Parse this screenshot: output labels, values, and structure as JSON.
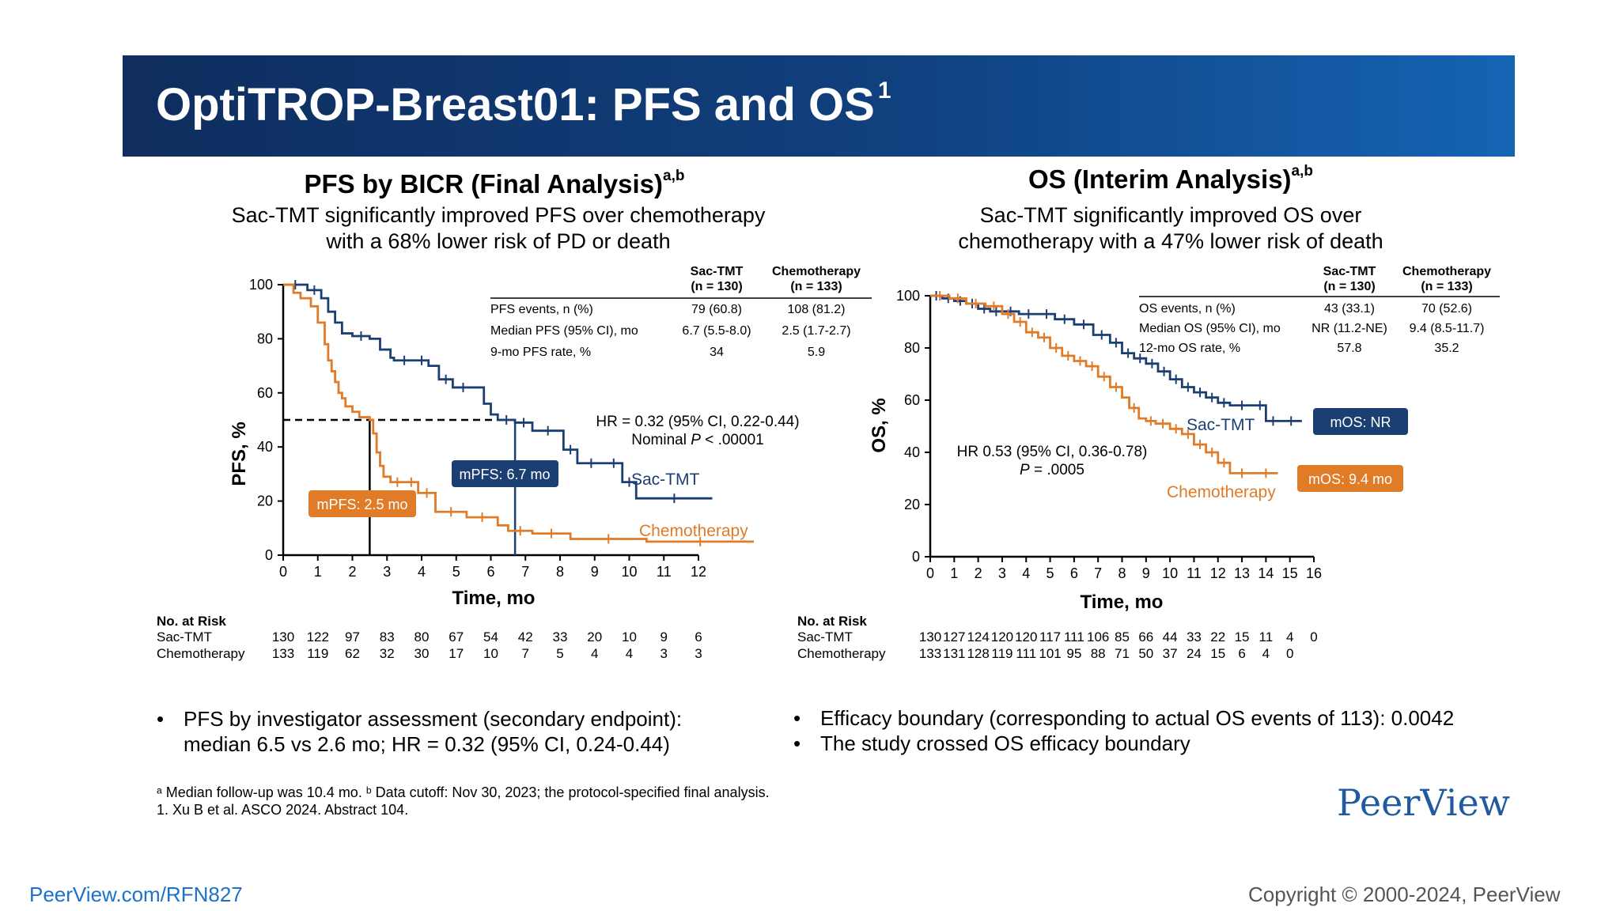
{
  "slide": {
    "title": "OptiTROP-Breast01: PFS and OS",
    "title_sup": "1"
  },
  "pfs": {
    "heading": "PFS by BICR (Final Analysis)",
    "heading_sup": "a,b",
    "subtitle_line1": "Sac-TMT significantly improved PFS over chemotherapy",
    "subtitle_line2": "with a 68% lower risk of PD or death",
    "table": {
      "headers": [
        [
          "Sac-TMT",
          "(n = 130)"
        ],
        [
          "Chemotherapy",
          "(n = 133)"
        ]
      ],
      "rows": [
        [
          "PFS events, n (%)",
          "79 (60.8)",
          "108 (81.2)"
        ],
        [
          "Median PFS (95% CI), mo",
          "6.7 (5.5-8.0)",
          "2.5 (1.7-2.7)"
        ],
        [
          "9-mo PFS rate, %",
          "34",
          "5.9"
        ]
      ]
    },
    "hr_line1": "HR = 0.32 (95% CI, 0.22-0.44)",
    "hr_line2_prefix": "Nominal ",
    "hr_line2_p": "P",
    "hr_line2_suffix": " < .00001",
    "median_labels": {
      "sac": "mPFS: 6.7 mo",
      "chemo": "mPFS: 2.5 mo"
    },
    "risk": {
      "header": "No. at Risk",
      "rows": [
        {
          "label": "Sac-TMT",
          "values": [
            "130",
            "122",
            "97",
            "83",
            "80",
            "67",
            "54",
            "42",
            "33",
            "20",
            "10",
            "9",
            "6"
          ]
        },
        {
          "label": "Chemotherapy",
          "values": [
            "133",
            "119",
            "62",
            "32",
            "30",
            "17",
            "10",
            "7",
            "5",
            "4",
            "4",
            "3",
            "3"
          ]
        }
      ]
    }
  },
  "os": {
    "heading": "OS (Interim Analysis)",
    "heading_sup": "a,b",
    "subtitle_line1": "Sac-TMT significantly improved OS over",
    "subtitle_line2": "chemotherapy with a 47% lower risk of death",
    "table": {
      "headers": [
        [
          "Sac-TMT",
          "(n = 130)"
        ],
        [
          "Chemotherapy",
          "(n = 133)"
        ]
      ],
      "rows": [
        [
          "OS events, n (%)",
          "43 (33.1)",
          "70 (52.6)"
        ],
        [
          "Median OS (95% CI), mo",
          "NR (11.2-NE)",
          "9.4 (8.5-11.7)"
        ],
        [
          "12-mo OS rate, %",
          "57.8",
          "35.2"
        ]
      ]
    },
    "hr_line1": "HR 0.53 (95% CI, 0.36-0.78)",
    "hr_line2_p": "P",
    "hr_line2_suffix": " = .0005",
    "median_labels": {
      "sac": "mOS: NR",
      "chemo": "mOS: 9.4 mo"
    },
    "risk": {
      "header": "No. at Risk",
      "rows": [
        {
          "label": "Sac-TMT",
          "values": [
            "130",
            "127",
            "124",
            "120",
            "120",
            "117",
            "111",
            "106",
            "85",
            "66",
            "44",
            "33",
            "22",
            "15",
            "11",
            "4",
            "0"
          ]
        },
        {
          "label": "Chemotherapy",
          "values": [
            "133",
            "131",
            "128",
            "119",
            "111",
            "101",
            "95",
            "88",
            "71",
            "50",
            "37",
            "24",
            "15",
            "6",
            "4",
            "0"
          ]
        }
      ]
    }
  },
  "chart_data": [
    {
      "type": "line",
      "title": "PFS by BICR (Final Analysis)",
      "xlabel": "Time, mo",
      "ylabel": "PFS, %",
      "xlim": [
        0,
        12
      ],
      "ylim": [
        0,
        100
      ],
      "xticks": [
        0,
        1,
        2,
        3,
        4,
        5,
        6,
        7,
        8,
        9,
        10,
        11,
        12
      ],
      "yticks": [
        0,
        20,
        40,
        60,
        80,
        100
      ],
      "series": [
        {
          "name": "Sac-TMT",
          "color": "#1b3f73",
          "x": [
            0,
            0.7,
            1.1,
            1.3,
            1.5,
            1.7,
            2.0,
            2.5,
            2.8,
            3.1,
            3.2,
            3.8,
            4.2,
            4.5,
            4.9,
            5.5,
            5.8,
            6.0,
            6.2,
            6.7,
            7.2,
            8.1,
            8.5,
            9.3,
            9.8,
            10.2,
            12.4
          ],
          "y": [
            100,
            98,
            95,
            90,
            86,
            82,
            81,
            80,
            76,
            73,
            72,
            72,
            70,
            65,
            62,
            62,
            56,
            52,
            50,
            49,
            46,
            39,
            34,
            34,
            27,
            21,
            21
          ]
        },
        {
          "name": "Chemotherapy",
          "color": "#e07b28",
          "x": [
            0,
            0.3,
            0.5,
            0.8,
            1.0,
            1.2,
            1.3,
            1.4,
            1.5,
            1.6,
            1.7,
            1.8,
            2.0,
            2.2,
            2.5,
            2.6,
            2.7,
            2.8,
            2.9,
            3.1,
            3.5,
            3.9,
            4.4,
            5.3,
            6.2,
            6.5,
            7.2,
            8.3,
            10.5,
            13.6
          ],
          "y": [
            100,
            97,
            95,
            92,
            86,
            78,
            72,
            68,
            64,
            60,
            58,
            55,
            53,
            51,
            50,
            45,
            38,
            33,
            29,
            27,
            27,
            23,
            16,
            14,
            11,
            9,
            8,
            6,
            5,
            5
          ]
        }
      ],
      "reference_line": {
        "y": 50,
        "x_medians": [
          2.5,
          6.7
        ]
      },
      "annotations": [
        "HR = 0.32 (95% CI, 0.22-0.44)",
        "Nominal P < .00001",
        "mPFS: 6.7 mo",
        "mPFS: 2.5 mo",
        "Sac-TMT",
        "Chemotherapy"
      ]
    },
    {
      "type": "line",
      "title": "OS (Interim Analysis)",
      "xlabel": "Time, mo",
      "ylabel": "OS, %",
      "xlim": [
        0,
        16
      ],
      "ylim": [
        0,
        100
      ],
      "xticks": [
        0,
        1,
        2,
        3,
        4,
        5,
        6,
        7,
        8,
        9,
        10,
        11,
        12,
        13,
        14,
        15,
        16
      ],
      "yticks": [
        0,
        20,
        40,
        60,
        80,
        100
      ],
      "series": [
        {
          "name": "Sac-TMT",
          "color": "#1b3f73",
          "x": [
            0,
            0.5,
            1.0,
            1.5,
            2.0,
            2.5,
            3.0,
            3.7,
            4.5,
            5.2,
            6.0,
            6.8,
            7.5,
            8.0,
            8.5,
            9.0,
            9.5,
            10.0,
            10.5,
            11.0,
            11.5,
            12.0,
            12.5,
            13.5,
            14.0,
            14.6,
            15.5
          ],
          "y": [
            100,
            99,
            98,
            97,
            95,
            94,
            94,
            93,
            93,
            91,
            89,
            85,
            82,
            78,
            76,
            74,
            71,
            68,
            65,
            63,
            61,
            59,
            58,
            58,
            52,
            52,
            52
          ]
        },
        {
          "name": "Chemotherapy",
          "color": "#e07b28",
          "x": [
            0,
            0.8,
            1.5,
            2.3,
            3.0,
            3.5,
            4.0,
            4.5,
            5.0,
            5.5,
            6.0,
            6.5,
            7.0,
            7.5,
            8.0,
            8.3,
            8.7,
            9.0,
            9.4,
            10.0,
            10.5,
            11.0,
            11.5,
            12.0,
            12.5,
            13.5,
            14.5
          ],
          "y": [
            100,
            99,
            97,
            96,
            93,
            90,
            86,
            84,
            80,
            77,
            75,
            73,
            69,
            65,
            61,
            57,
            53,
            52,
            51,
            49,
            47,
            43,
            40,
            36,
            32,
            32,
            32
          ]
        }
      ],
      "annotations": [
        "HR 0.53 (95% CI, 0.36-0.78)",
        "P = .0005",
        "mOS: NR",
        "mOS: 9.4 mo",
        "Sac-TMT",
        "Chemotherapy"
      ]
    }
  ],
  "bullets_left": {
    "line1": "PFS by investigator assessment (secondary endpoint):",
    "line2": "median 6.5 vs 2.6 mo; HR = 0.32 (95% CI, 0.24-0.44)"
  },
  "bullets_right": [
    "Efficacy boundary (corresponding to actual OS events of 113): 0.0042",
    "The study crossed OS efficacy boundary"
  ],
  "bullet_symbol": "•",
  "footnotes": {
    "line1": "ᵃ Median follow-up was 10.4 mo. ᵇ Data cutoff: Nov 30, 2023; the protocol-specified final analysis.",
    "line2": "1. Xu B et al. ASCO 2024. Abstract 104."
  },
  "logo_text": "PeerView",
  "footer": {
    "link": "PeerView.com/RFN827",
    "copyright": "Copyright © 2000-2024, PeerView"
  },
  "colors": {
    "sac_tmt": "#1b3f73",
    "chemo": "#e07b28",
    "title_bar_start": "#0f2d5e",
    "title_bar_end": "#1564b4"
  }
}
